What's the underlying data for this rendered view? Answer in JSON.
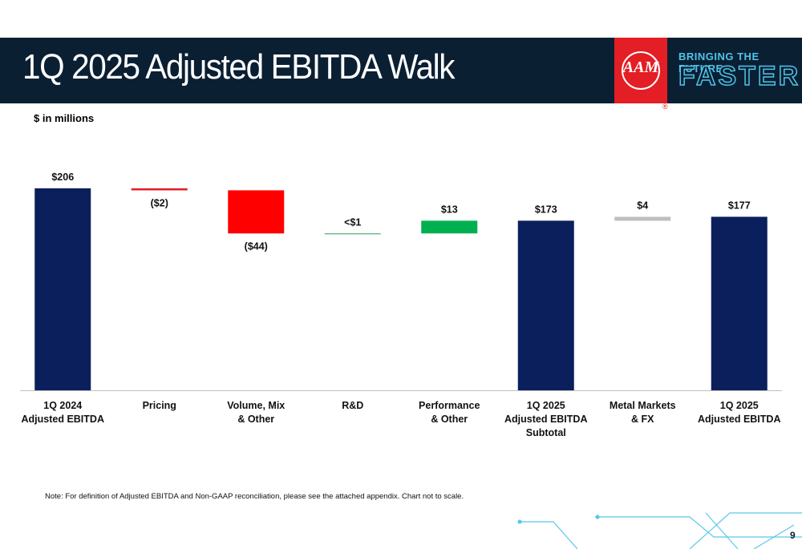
{
  "header": {
    "title": "1Q 2025 Adjusted EBITDA Walk",
    "logo": "AAM",
    "tagline_1": "BRINGING THE FUTURE",
    "tagline_2": "FASTER",
    "registered": "®"
  },
  "chart_data": {
    "type": "waterfall",
    "subtitle": "$ in millions",
    "categories": [
      "1Q 2024\nAdjusted EBITDA",
      "Pricing",
      "Volume, Mix\n& Other",
      "R&D",
      "Performance\n& Other",
      "1Q 2025\nAdjusted EBITDA\nSubtotal",
      "Metal Markets\n& FX",
      "1Q 2025\nAdjusted EBITDA"
    ],
    "values": [
      206,
      -2,
      -44,
      0,
      13,
      173,
      4,
      177
    ],
    "value_labels": [
      "$206",
      "($2)",
      "($44)",
      "<$1",
      "$13",
      "$173",
      "$4",
      "$177"
    ],
    "bar_kinds": [
      "total",
      "delta",
      "delta",
      "delta",
      "delta",
      "total",
      "delta",
      "total"
    ],
    "colors": [
      "#0a1f5c",
      "#e31e24",
      "#ff0000",
      "#2e9e5b",
      "#00b050",
      "#0a1f5c",
      "#bfbfbf",
      "#0a1f5c"
    ]
  },
  "footer": {
    "note": "Note: For definition of Adjusted EBITDA and Non-GAAP reconciliation, please see the attached appendix. Chart not to scale.",
    "page": "9"
  }
}
